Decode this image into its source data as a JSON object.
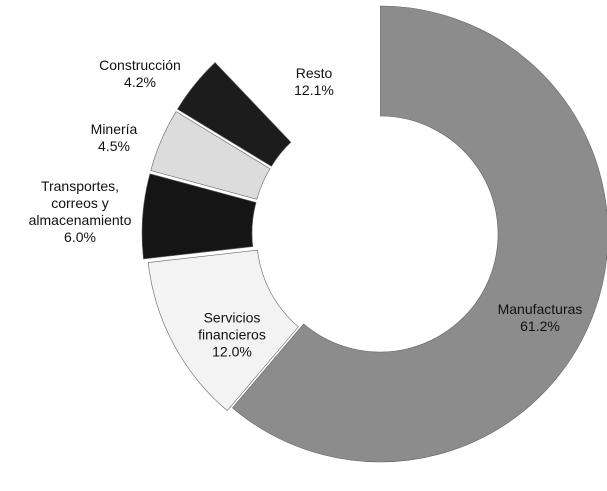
{
  "chart_data": {
    "type": "donut",
    "categories": [
      "Manufacturas",
      "Servicios financieros",
      "Transportes, correos y almacenamiento",
      "Minería",
      "Construcción",
      "Resto"
    ],
    "values": [
      61.2,
      12.0,
      6.0,
      4.5,
      4.2,
      12.1
    ],
    "value_labels": [
      "61.2%",
      "12.0%",
      "6.0%",
      "4.5%",
      "4.2%",
      "12.1%"
    ],
    "colors": [
      "#8c8c8c",
      "#f3f3f3",
      "#151515",
      "#dcdcdc",
      "#1c1c1c",
      "#ffffff"
    ]
  }
}
